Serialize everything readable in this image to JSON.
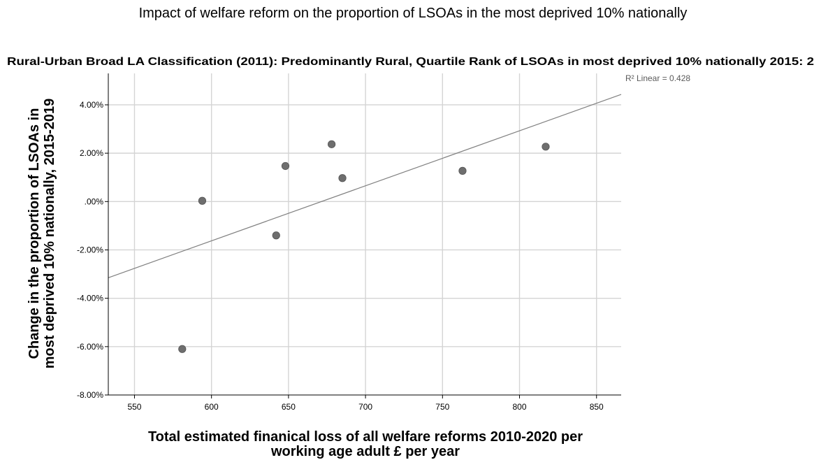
{
  "chart_data": {
    "type": "scatter",
    "title": "Impact of welfare reform on the proportion of LSOAs in the most deprived 10% nationally",
    "subtitle": "Rural-Urban Broad LA Classification (2011): Predominantly Rural, Quartile Rank of LSOAs in most deprived 10% nationally 2015: 2",
    "xlabel": [
      "Total estimated finanical loss of all welfare reforms 2010-2020 per",
      "working age adult £ per year"
    ],
    "ylabel": [
      "Change in the proportion of LSOAs in",
      "most deprived 10% nationally, 2015-2019"
    ],
    "xlim": [
      533,
      866
    ],
    "ylim": [
      -8.0,
      5.3
    ],
    "x_ticks": [
      550,
      600,
      650,
      700,
      750,
      800,
      850
    ],
    "x_tick_labels": [
      "550",
      "600",
      "650",
      "700",
      "750",
      "800",
      "850"
    ],
    "y_ticks": [
      4,
      2,
      0,
      -2,
      -4,
      -6,
      -8
    ],
    "y_tick_labels": [
      "4.00%",
      "2.00%",
      ".00%",
      "-2.00%",
      "-4.00%",
      "-6.00%",
      "-8.00%"
    ],
    "grid": true,
    "points": [
      {
        "x": 581,
        "y": -6.1
      },
      {
        "x": 594,
        "y": 0.03
      },
      {
        "x": 642,
        "y": -1.4
      },
      {
        "x": 648,
        "y": 1.47
      },
      {
        "x": 678,
        "y": 2.37
      },
      {
        "x": 685,
        "y": 0.97
      },
      {
        "x": 763,
        "y": 1.27
      },
      {
        "x": 817,
        "y": 2.27
      }
    ],
    "fit_line": {
      "type": "linear",
      "x": [
        533,
        866
      ],
      "y": [
        -3.15,
        4.43
      ],
      "annotation": "R² Linear = 0.428"
    },
    "colors": {
      "points": "#6e6e6e",
      "fit_line": "#808080",
      "grid": "#d4d4d4"
    }
  }
}
